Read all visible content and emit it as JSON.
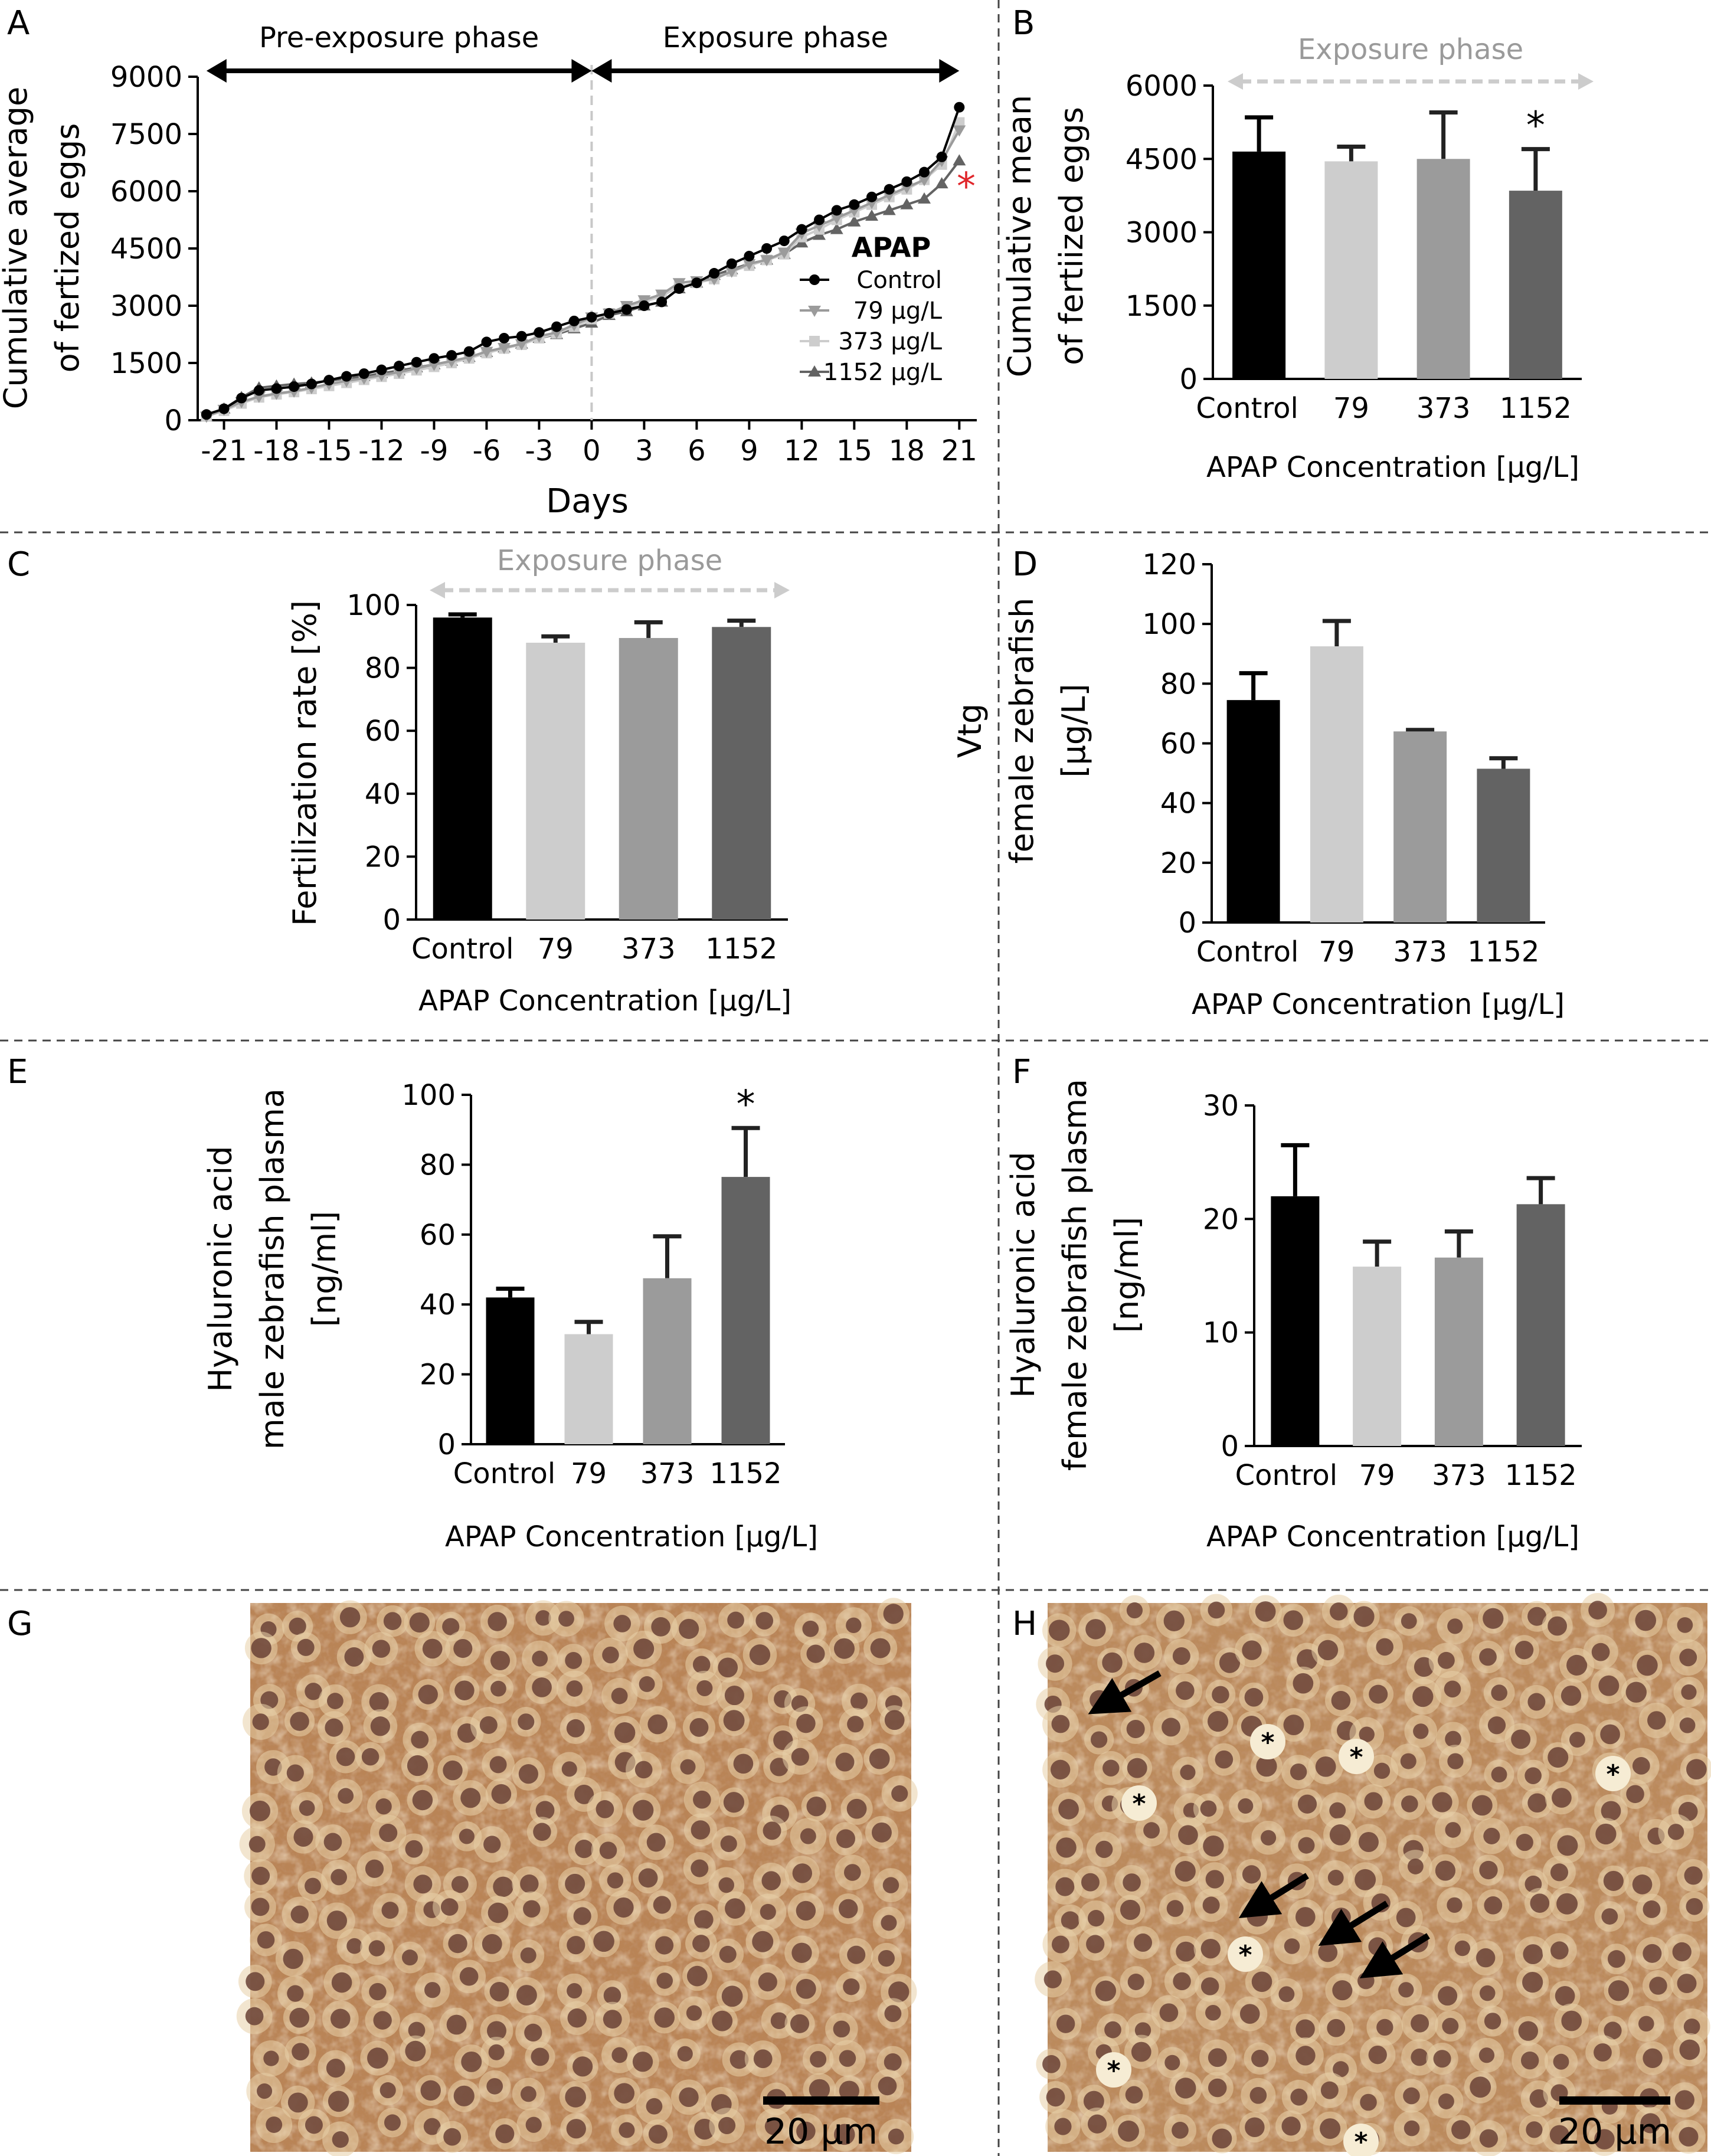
{
  "figure": {
    "panel_letters": [
      "A",
      "B",
      "C",
      "D",
      "E",
      "F",
      "G",
      "H"
    ]
  },
  "colors": {
    "control": "#000000",
    "c79": "#cdcdcd",
    "c373": "#9b9b9b",
    "c1152": "#636363",
    "sig_red": "#e0262b",
    "phase_arrow_grey": "#cccccc",
    "phase_text_grey": "#9a9a9a",
    "divider": "#444444",
    "tissue_base": "#b98456",
    "tissue_light": "#e4c498",
    "nucleus": "#6a4236"
  },
  "chart_data": [
    {
      "panel": "A",
      "type": "line",
      "ylabel_lines": [
        "Cumulative average",
        "of fertized eggs"
      ],
      "xlabel": "Days",
      "xlim": [
        -22.5,
        22
      ],
      "ylim": [
        0,
        9000
      ],
      "xticks": [
        "-21",
        "-18",
        "-15",
        "-12",
        "-9",
        "-6",
        "-3",
        "0",
        "3",
        "6",
        "9",
        "12",
        "15",
        "18",
        "21"
      ],
      "yticks": [
        "0",
        "1500",
        "3000",
        "4500",
        "6000",
        "7500",
        "9000"
      ],
      "phases": [
        {
          "label": "Pre-exposure phase",
          "from": -22,
          "to": 0
        },
        {
          "label": "Exposure phase",
          "from": 0,
          "to": 21
        }
      ],
      "legend_title": "APAP",
      "legend_position": "right",
      "significance": {
        "label": "*",
        "color": "red",
        "series": "1152 µg/L"
      },
      "x": [
        -22,
        -21,
        -20,
        -19,
        -18,
        -17,
        -16,
        -15,
        -14,
        -13,
        -12,
        -11,
        -10,
        -9,
        -8,
        -7,
        -6,
        -5,
        -4,
        -3,
        -2,
        -1,
        0,
        1,
        2,
        3,
        4,
        5,
        6,
        7,
        8,
        9,
        10,
        11,
        12,
        13,
        14,
        15,
        16,
        17,
        18,
        19,
        20,
        21
      ],
      "series": [
        {
          "name": "Control",
          "marker": "circle",
          "color": "#000000",
          "values": [
            150,
            300,
            580,
            780,
            830,
            880,
            950,
            1050,
            1150,
            1220,
            1320,
            1420,
            1520,
            1620,
            1700,
            1800,
            2050,
            2150,
            2200,
            2300,
            2450,
            2600,
            2700,
            2800,
            2900,
            3000,
            3100,
            3450,
            3600,
            3850,
            4100,
            4300,
            4500,
            4700,
            5000,
            5250,
            5500,
            5650,
            5850,
            6050,
            6250,
            6500,
            6900,
            8200
          ]
        },
        {
          "name": "79 µg/L",
          "marker": "triangle-down",
          "color": "#9b9b9b",
          "values": [
            100,
            280,
            480,
            620,
            700,
            760,
            850,
            950,
            1030,
            1100,
            1180,
            1260,
            1360,
            1460,
            1550,
            1650,
            1800,
            1900,
            2000,
            2200,
            2300,
            2500,
            2700,
            2800,
            3000,
            3150,
            3300,
            3600,
            3650,
            3700,
            3900,
            4100,
            4200,
            4400,
            4900,
            5100,
            5300,
            5500,
            5700,
            5900,
            6100,
            6300,
            6800,
            7600
          ]
        },
        {
          "name": "373 µg/L",
          "marker": "square",
          "color": "#cdcdcd",
          "values": [
            100,
            250,
            440,
            600,
            680,
            740,
            820,
            900,
            980,
            1060,
            1140,
            1220,
            1310,
            1400,
            1500,
            1620,
            1760,
            1880,
            1980,
            2150,
            2280,
            2450,
            2650,
            2800,
            2950,
            3100,
            3250,
            3500,
            3600,
            3700,
            3900,
            4050,
            4200,
            4350,
            4800,
            5000,
            5250,
            5450,
            5650,
            5850,
            6050,
            6300,
            6700,
            7800
          ]
        },
        {
          "name": "1152 µg/L",
          "marker": "triangle-up",
          "color": "#636363",
          "values": [
            100,
            300,
            600,
            850,
            900,
            950,
            980,
            1030,
            1100,
            1150,
            1230,
            1300,
            1380,
            1460,
            1550,
            1650,
            1780,
            1900,
            2000,
            2150,
            2250,
            2400,
            2550,
            2750,
            2850,
            3000,
            3100,
            3450,
            3600,
            3800,
            3950,
            4100,
            4200,
            4350,
            4650,
            4850,
            5000,
            5200,
            5350,
            5500,
            5650,
            5800,
            6200,
            6800
          ]
        }
      ]
    },
    {
      "panel": "B",
      "type": "bar",
      "phase_label": "Exposure phase",
      "ylabel_lines": [
        "Cumulative mean",
        "of fertiized eggs"
      ],
      "xlabel": "APAP Concentration [µg/L]",
      "categories": [
        "Control",
        "79",
        "373",
        "1152"
      ],
      "values": [
        4650,
        4450,
        4500,
        3850
      ],
      "errors": [
        700,
        300,
        950,
        850
      ],
      "significance": [
        "",
        "",
        "",
        "*"
      ],
      "ylim": [
        0,
        6000
      ],
      "yticks": [
        "0",
        "1500",
        "3000",
        "4500",
        "6000"
      ]
    },
    {
      "panel": "C",
      "type": "bar",
      "phase_label": "Exposure phase",
      "ylabel_lines": [
        "Fertilization rate [%]"
      ],
      "xlabel": "APAP Concentration [µg/L]",
      "categories": [
        "Control",
        "79",
        "373",
        "1152"
      ],
      "values": [
        96,
        88,
        89.5,
        93
      ],
      "errors": [
        1,
        2,
        5,
        2
      ],
      "significance": [
        "",
        "",
        "",
        ""
      ],
      "ylim": [
        0,
        100
      ],
      "yticks": [
        "0",
        "20",
        "40",
        "60",
        "80",
        "100"
      ]
    },
    {
      "panel": "D",
      "type": "bar",
      "ylabel_lines": [
        "Vtg",
        "female zebrafish",
        "[µg/L]"
      ],
      "xlabel": "APAP Concentration [µg/L]",
      "categories": [
        "Control",
        "79",
        "373",
        "1152"
      ],
      "values": [
        74.5,
        92.5,
        64,
        51.5
      ],
      "errors": [
        9,
        8.5,
        0.5,
        3.5
      ],
      "significance": [
        "",
        "",
        "",
        ""
      ],
      "ylim": [
        0,
        120
      ],
      "yticks": [
        "0",
        "20",
        "40",
        "60",
        "80",
        "100",
        "120"
      ]
    },
    {
      "panel": "E",
      "type": "bar",
      "ylabel_lines": [
        "Hyaluronic acid",
        "male zebrafish plasma",
        "[ng/ml]"
      ],
      "xlabel": "APAP Concentration [µg/L]",
      "categories": [
        "Control",
        "79",
        "373",
        "1152"
      ],
      "values": [
        42,
        31.5,
        47.5,
        76.5
      ],
      "errors": [
        2.5,
        3.5,
        12,
        14
      ],
      "significance": [
        "",
        "",
        "",
        "*"
      ],
      "ylim": [
        0,
        100
      ],
      "yticks": [
        "0",
        "20",
        "40",
        "60",
        "80",
        "100"
      ]
    },
    {
      "panel": "F",
      "type": "bar",
      "ylabel_lines": [
        "Hyaluronic acid",
        "female zebrafish plasma",
        "[ng/ml]"
      ],
      "xlabel": "APAP Concentration [µg/L]",
      "categories": [
        "Control",
        "79",
        "373",
        "1152"
      ],
      "values": [
        22,
        15.8,
        16.6,
        21.3
      ],
      "errors": [
        4.5,
        2.2,
        2.3,
        2.3
      ],
      "significance": [
        "",
        "",
        "",
        ""
      ],
      "ylim": [
        0,
        30
      ],
      "yticks": [
        "0",
        "10",
        "20",
        "30"
      ]
    }
  ],
  "micrographs": [
    {
      "panel": "G",
      "scale_bar": "20 µm"
    },
    {
      "panel": "H",
      "scale_bar": "20 µm",
      "marker_symbol": "*"
    }
  ]
}
